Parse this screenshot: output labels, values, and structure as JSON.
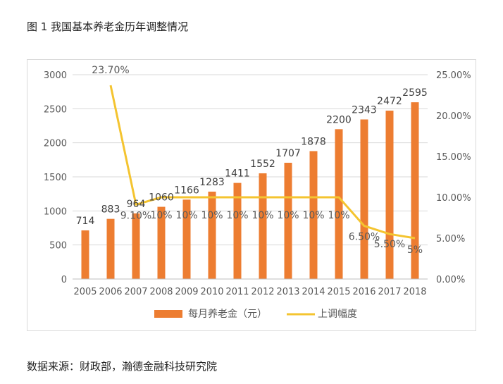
{
  "figure": {
    "title": "图 1 我国基本养老金历年调整情况",
    "source": "数据来源：财政部，瀚德金融科技研究院"
  },
  "colors": {
    "bar": "#ED7D31",
    "line": "#F4C430",
    "grid": "#d9d9d9",
    "axis_text": "#595959"
  },
  "chart_data": {
    "type": "bar",
    "categories": [
      "2005",
      "2006",
      "2007",
      "2008",
      "2009",
      "2010",
      "2011",
      "2012",
      "2013",
      "2014",
      "2015",
      "2016",
      "2017",
      "2018"
    ],
    "series": [
      {
        "name": "每月养老金（元）",
        "type": "bar",
        "axis": "left",
        "values": [
          714,
          883,
          964,
          1060,
          1166,
          1283,
          1411,
          1552,
          1707,
          1878,
          2200,
          2343,
          2472,
          2595
        ],
        "labels": [
          "714",
          "883",
          "964",
          "1060",
          "1166",
          "1283",
          "1411",
          "1552",
          "1707",
          "1878",
          "2200",
          "2343",
          "2472",
          "2595"
        ]
      },
      {
        "name": "上调幅度",
        "type": "line",
        "axis": "right",
        "values": [
          null,
          23.7,
          9.1,
          10,
          10,
          10,
          10,
          10,
          10,
          10,
          10,
          6.5,
          5.5,
          5
        ],
        "labels": [
          "",
          "23.70%",
          "9.10%",
          "10%",
          "10%",
          "10%",
          "10%",
          "10%",
          "10%",
          "10%",
          "10%",
          "6.50%",
          "5.50%",
          "5%"
        ]
      }
    ],
    "y_left": {
      "lim": [
        0,
        3000
      ],
      "ticks": [
        0,
        500,
        1000,
        1500,
        2000,
        2500,
        3000
      ],
      "tick_labels": [
        "0",
        "500",
        "1000",
        "1500",
        "2000",
        "2500",
        "3000"
      ]
    },
    "y_right": {
      "lim": [
        0,
        25
      ],
      "ticks": [
        0,
        5,
        10,
        15,
        20,
        25
      ],
      "tick_labels": [
        "0.00%",
        "5.00%",
        "10.00%",
        "15.00%",
        "20.00%",
        "25.00%"
      ]
    },
    "grid": true,
    "legend_position": "bottom"
  }
}
